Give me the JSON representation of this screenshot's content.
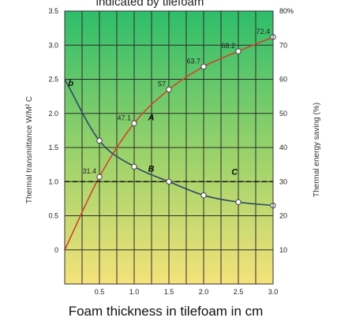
{
  "chart_data": {
    "type": "line",
    "title": "indicated by tilefoam",
    "xlabel": "Foam thickness in tilefoam in cm",
    "ylabel_left": "Thermal transmittance W/M² C",
    "ylabel_right": "Thermal energy saving (%)",
    "xlim": [
      0,
      3.0
    ],
    "ylim_left": [
      -0.5,
      3.5
    ],
    "ylim_right": [
      0,
      80
    ],
    "x_ticks": [
      "0.5",
      "1.0",
      "1.5",
      "2.0",
      "2.5",
      "3.0"
    ],
    "y_left_ticks": [
      "0",
      "0.5",
      "1.0",
      "1.5",
      "2.0",
      "2.5",
      "3.0",
      "3.5"
    ],
    "y_right_ticks": [
      "10",
      "20",
      "30",
      "40",
      "50",
      "60",
      "70",
      "80%"
    ],
    "grid": true,
    "background_gradient": [
      "#2ebd6b",
      "#f5e27a"
    ],
    "series": [
      {
        "name": "A",
        "axis": "right",
        "color": "#d2452a",
        "x": [
          0,
          0.5,
          1.0,
          1.5,
          2.0,
          2.5,
          3.0
        ],
        "values": [
          10,
          31.4,
          47.1,
          57,
          63.7,
          68.2,
          72.4
        ],
        "labels": [
          "",
          "31.4",
          "47.1",
          "57",
          "63.7",
          "68.2",
          "72.4"
        ]
      },
      {
        "name": "B",
        "axis": "left",
        "color": "#2f4766",
        "x": [
          0,
          0.5,
          1.0,
          1.5,
          2.0,
          2.5,
          3.0
        ],
        "values": [
          2.5,
          1.6,
          1.22,
          1.0,
          0.8,
          0.7,
          0.65
        ]
      },
      {
        "name": "C",
        "axis": "left",
        "color": "#111111",
        "dashed": true,
        "x": [
          0,
          3.0
        ],
        "values": [
          1.0,
          1.0
        ]
      }
    ],
    "curve_labels": [
      {
        "text": "b",
        "x": 0.05,
        "y": 2.4
      },
      {
        "text": "A",
        "x": 1.2,
        "y": 1.9
      },
      {
        "text": "B",
        "x": 1.2,
        "y": 1.15
      },
      {
        "text": "C",
        "x": 2.4,
        "y": 1.1
      }
    ]
  }
}
